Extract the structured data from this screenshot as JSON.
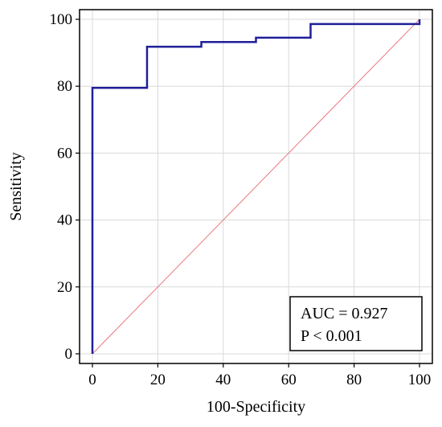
{
  "chart_data": {
    "type": "line",
    "title": "",
    "xlabel": "100-Specificity",
    "ylabel": "Sensitivity",
    "xlim": [
      0,
      100
    ],
    "ylim": [
      0,
      100
    ],
    "x_ticks": [
      0,
      20,
      40,
      60,
      80,
      100
    ],
    "y_ticks": [
      0,
      20,
      40,
      60,
      80,
      100
    ],
    "grid": true,
    "series": [
      {
        "style": "step",
        "color": "#1f1f99",
        "x": [
          0,
          0,
          16.7,
          16.7,
          33.3,
          33.3,
          50,
          50,
          66.7,
          66.7,
          100,
          100
        ],
        "y": [
          0,
          79.5,
          79.5,
          91.8,
          91.8,
          93.2,
          93.2,
          94.5,
          94.5,
          98.6,
          98.6,
          100
        ]
      },
      {
        "style": "diagonal",
        "color": "#e8777d",
        "x": [
          0,
          100
        ],
        "y": [
          0,
          100
        ]
      }
    ],
    "annotations": [
      "AUC = 0.927",
      "P < 0.001"
    ],
    "annotation_placement": "bottom-right"
  }
}
